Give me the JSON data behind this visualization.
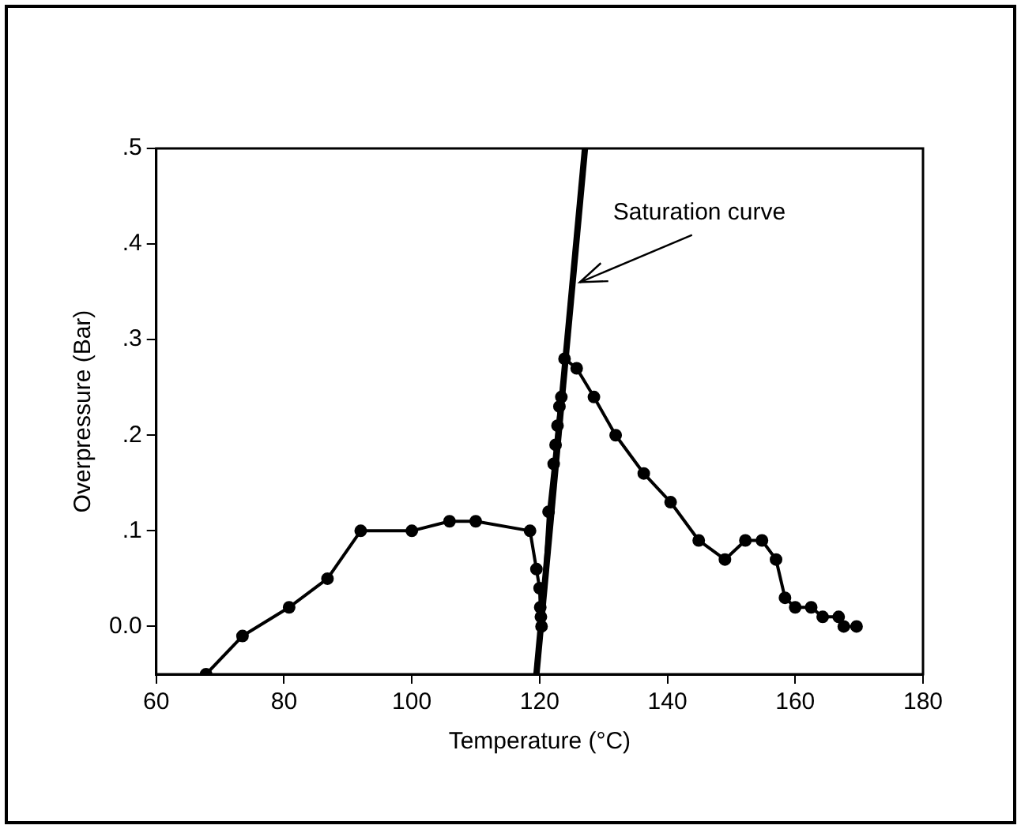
{
  "chart_data": {
    "type": "line",
    "xlabel": "Temperature (°C)",
    "ylabel": "Overpressure (Bar)",
    "xlim": [
      60,
      180
    ],
    "xticks": [
      60,
      80,
      100,
      120,
      140,
      160,
      180
    ],
    "ylim": [
      -0.05,
      0.5
    ],
    "yticks": [
      {
        "value": 0,
        "label": "0.0"
      },
      {
        "value": 0.1,
        "label": ".1"
      },
      {
        "value": 0.2,
        "label": ".2"
      },
      {
        "value": 0.3,
        "label": ".3"
      },
      {
        "value": 0.4,
        "label": ".4"
      },
      {
        "value": 0.5,
        "label": ".5"
      }
    ],
    "grid": false,
    "legend": false,
    "marker": "circle",
    "series": [
      {
        "color": "#000000",
        "x": [
          67.8,
          73.5,
          80.8,
          86.8,
          92,
          100,
          105.9,
          110,
          118.5,
          119.5,
          120,
          120.1,
          120.2,
          120.3,
          121.4,
          122.2,
          122.5,
          122.8,
          123.1,
          123.4,
          123.9,
          125.8,
          128.5,
          131.9,
          136.3,
          140.5,
          144.9,
          149,
          152.2,
          154.8,
          157,
          158.4,
          160,
          162.5,
          164.3,
          166.8,
          167.6,
          169.6
        ],
        "values": [
          -0.05,
          -0.01,
          0.02,
          0.05,
          0.1,
          0.1,
          0.11,
          0.11,
          0.1,
          0.06,
          0.04,
          0.02,
          0.01,
          0,
          0.12,
          0.17,
          0.19,
          0.21,
          0.23,
          0.24,
          0.28,
          0.27,
          0.24,
          0.2,
          0.16,
          0.13,
          0.09,
          0.07,
          0.09,
          0.09,
          0.07,
          0.03,
          0.02,
          0.02,
          0.01,
          0.01,
          0,
          0
        ]
      },
      {
        "color": "#000000",
        "marker": "none",
        "x": [
          119.5,
          127.1
        ],
        "values": [
          -0.05,
          0.5
        ]
      }
    ],
    "annotations": [
      {
        "text": "Saturation curve",
        "x": 125.8,
        "y": 0.36
      }
    ]
  }
}
